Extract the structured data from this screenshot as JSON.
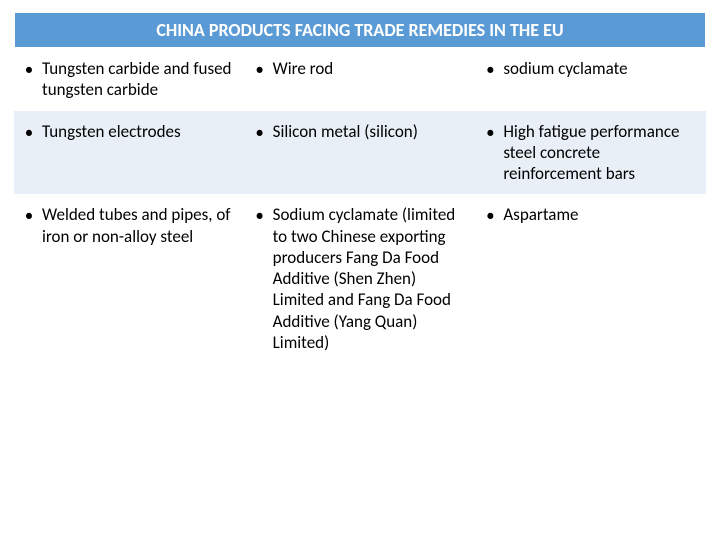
{
  "title": "CHINA PRODUCTS FACING TRADE REMEDIES IN THE EU",
  "colors": {
    "title_bg": "#5b9bd5",
    "title_fg": "#ffffff",
    "row_alt_bg": "#e9eff7",
    "text": "#000000"
  },
  "table": {
    "type": "table",
    "columns": 3,
    "rows": [
      [
        "Tungsten carbide and fused tungsten carbide",
        "Wire rod",
        "sodium cyclamate"
      ],
      [
        "Tungsten electrodes",
        "Silicon metal (silicon)",
        "High fatigue performance steel concrete reinforcement bars"
      ],
      [
        "Welded tubes and pipes, of iron or non-alloy steel",
        "Sodium cyclamate (limited to two Chinese exporting producers Fang Da Food Additive (Shen Zhen) Limited and Fang Da Food Additive (Yang Quan) Limited)",
        "Aspartame"
      ]
    ],
    "fontsize": 17,
    "title_fontsize": 18,
    "bullet_glyph": "•"
  }
}
